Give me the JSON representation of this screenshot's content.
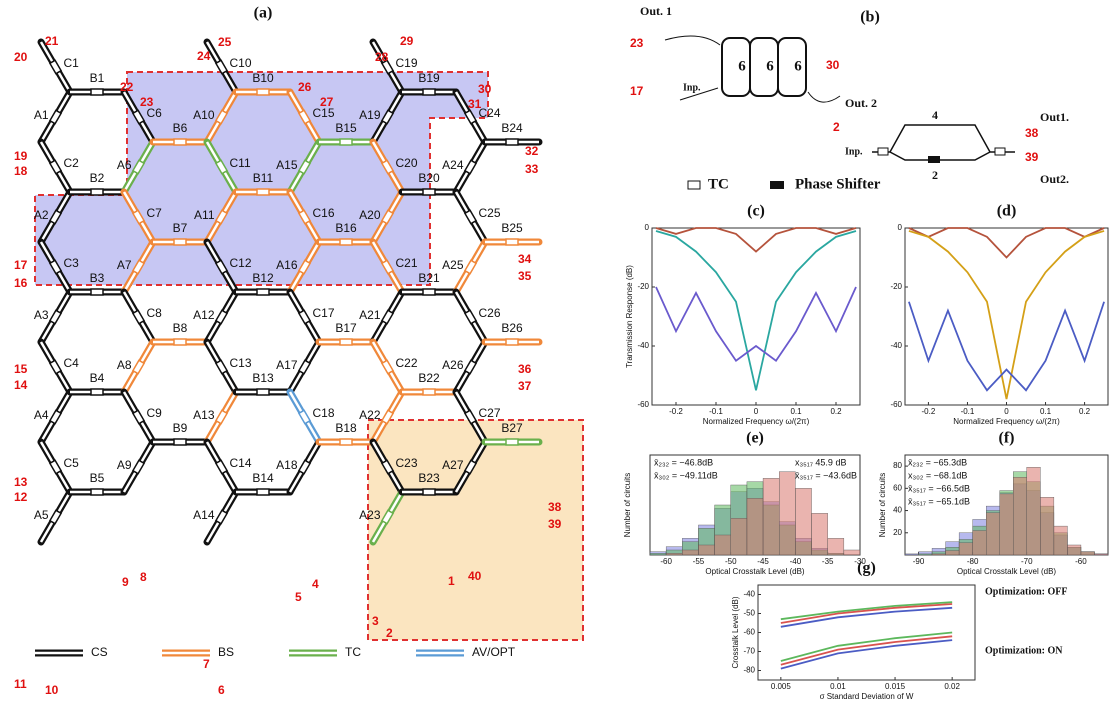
{
  "panel_a": {
    "label": "(a)",
    "columns": [
      {
        "A": [
          "A1",
          "A2",
          "A3",
          "A4",
          "A5"
        ],
        "B": [
          "B1",
          "B2",
          "B3",
          "B4",
          "B5"
        ],
        "C": [
          "C1",
          "C2",
          "C3",
          "C4",
          "C5"
        ]
      },
      {
        "A": [
          "A6",
          "A7",
          "A8",
          "A9"
        ],
        "B": [
          "B6",
          "B7",
          "B8",
          "B9"
        ],
        "C": [
          "C6",
          "C7",
          "C8",
          "C9"
        ]
      },
      {
        "A": [
          "A10",
          "A11",
          "A12",
          "A13",
          "A14"
        ],
        "B": [
          "B10",
          "B11",
          "B12",
          "B13",
          "B14"
        ],
        "C": [
          "C10",
          "C11",
          "C12",
          "C13",
          "C14"
        ]
      },
      {
        "A": [
          "A15",
          "A16",
          "A17",
          "A18"
        ],
        "B": [
          "B15",
          "B16",
          "B17",
          "B18"
        ],
        "C": [
          "C15",
          "C16",
          "C17",
          "C18"
        ]
      },
      {
        "A": [
          "A19",
          "A20",
          "A21",
          "A22",
          "A23"
        ],
        "B": [
          "B19",
          "B20",
          "B21",
          "B22",
          "B23"
        ],
        "C": [
          "C19",
          "C20",
          "C21",
          "C22",
          "C23"
        ]
      },
      {
        "A": [
          "A24",
          "A25",
          "A26",
          "A27"
        ],
        "B": [
          "B24",
          "B25",
          "B26",
          "B27"
        ],
        "C": [
          "C24",
          "C25",
          "C26",
          "C27"
        ]
      }
    ],
    "ports": [
      1,
      2,
      3,
      4,
      5,
      6,
      7,
      8,
      9,
      10,
      11,
      12,
      13,
      14,
      15,
      16,
      17,
      18,
      19,
      20,
      21,
      22,
      23,
      24,
      25,
      26,
      27,
      28,
      29,
      30,
      31,
      32,
      33,
      34,
      35,
      36,
      37,
      38,
      39,
      40
    ],
    "legend": [
      {
        "label": "CS",
        "color": "#111111"
      },
      {
        "label": "BS",
        "color": "#f0883a",
        "members": [
          "B6",
          "C7",
          "B7",
          "A7",
          "B8",
          "A8",
          "A10",
          "B10",
          "C15",
          "A11",
          "B11",
          "C16",
          "B16",
          "A16",
          "C20",
          "A20",
          "C21",
          "A13",
          "B17",
          "C22",
          "A22",
          "B22",
          "B18",
          "B25",
          "B26",
          "A25"
        ]
      },
      {
        "label": "TC",
        "color": "#6ab04c",
        "members": [
          "A6",
          "C11",
          "A15",
          "B15",
          "B27",
          "A23"
        ]
      },
      {
        "label": "AV/OPT",
        "color": "#5b9bd5",
        "members": [
          "C18"
        ]
      }
    ]
  },
  "panel_b": {
    "label": "(b)",
    "out1": "Out. 1",
    "port_23": 23,
    "port_17": 17,
    "inp": "Inp.",
    "stages": [
      6,
      6,
      6
    ],
    "port_30": 30,
    "out2": "Out. 2",
    "port_2": 2,
    "inp2": "Inp.",
    "upper": 4,
    "lower": 2,
    "out1b": "Out1.",
    "port_38": 38,
    "port_39": 39,
    "out2b": "Out2.",
    "legend": [
      "TC",
      "Phase Shifter"
    ]
  },
  "panel_c": {
    "label": "(c)",
    "type": "line",
    "y_label": "Transmission Response (dB)",
    "x_label": "Normalized Frequency ω/(2π)",
    "x": [
      -0.25,
      -0.2,
      -0.15,
      -0.1,
      -0.05,
      0,
      0.05,
      0.1,
      0.15,
      0.2,
      0.25
    ],
    "series": [
      {
        "color": "#b5533c",
        "values": [
          0,
          -2,
          0,
          0,
          -2,
          -8,
          -2,
          0,
          0,
          -2,
          0
        ]
      },
      {
        "color": "#2aa7a0",
        "values": [
          -1,
          -3,
          -8,
          -15,
          -25,
          -55,
          -25,
          -15,
          -8,
          -3,
          -1
        ]
      },
      {
        "color": "#6a5acd",
        "values": [
          -20,
          -35,
          -22,
          -35,
          -45,
          -40,
          -45,
          -35,
          -22,
          -35,
          -20
        ]
      }
    ],
    "xlim": [
      -0.26,
      0.26
    ],
    "ylim": [
      -60,
      0
    ],
    "xticks": [
      -0.2,
      -0.1,
      0,
      0.1,
      0.2
    ],
    "yticks": [
      -60,
      -40,
      -20,
      0
    ]
  },
  "panel_d": {
    "label": "(d)",
    "type": "line",
    "x_label": "Normalized Frequency ω/(2π)",
    "x": [
      -0.25,
      -0.2,
      -0.15,
      -0.1,
      -0.05,
      0,
      0.05,
      0.1,
      0.15,
      0.2,
      0.25
    ],
    "series": [
      {
        "color": "#b5533c",
        "values": [
          0,
          -3,
          0,
          0,
          -3,
          -10,
          -3,
          0,
          0,
          -3,
          0
        ]
      },
      {
        "color": "#d4a017",
        "values": [
          -1,
          -3,
          -8,
          -15,
          -25,
          -58,
          -25,
          -15,
          -8,
          -3,
          -1
        ]
      },
      {
        "color": "#4b5cc4",
        "values": [
          -25,
          -45,
          -28,
          -45,
          -55,
          -48,
          -55,
          -45,
          -28,
          -45,
          -25
        ]
      }
    ],
    "xlim": [
      -0.26,
      0.26
    ],
    "ylim": [
      -60,
      0
    ],
    "xticks": [
      -0.2,
      -0.1,
      0,
      0.1,
      0.2
    ],
    "yticks": [
      -60,
      -40,
      -20,
      0
    ]
  },
  "panel_e": {
    "label": "(e)",
    "type": "histogram",
    "y_label": "Number of circuits",
    "x_label": "Optical Crosstalk Level (dB)",
    "bins": [
      -62.5,
      -60,
      -57.5,
      -55,
      -52.5,
      -50,
      -47.5,
      -45,
      -42.5,
      -40,
      -37.5,
      -35,
      -32.5,
      -30
    ],
    "series": [
      {
        "color": "#7b7fe0",
        "values": [
          2,
          5,
          10,
          18,
          28,
          38,
          40,
          32,
          20,
          10,
          4,
          1,
          0
        ]
      },
      {
        "color": "#5cb85c",
        "values": [
          1,
          3,
          8,
          16,
          30,
          42,
          44,
          30,
          18,
          8,
          3,
          1,
          0
        ]
      },
      {
        "color": "#d9776e",
        "values": [
          0,
          1,
          3,
          6,
          12,
          22,
          34,
          46,
          50,
          40,
          25,
          10,
          3
        ]
      }
    ],
    "xlim": [
      -62.5,
      -30
    ],
    "ylim": [
      0,
      60
    ],
    "xticks": [
      -60,
      -55,
      -50,
      -45,
      -40,
      -35,
      -30
    ],
    "annotations": [
      "x̄₂₃₂ = −46.8dB",
      "x̄₃₀₂ = −49.11dB",
      "x₃₅₁₇ 45.9 dB",
      "x̄₃₅₁₇ = −43.6dB"
    ]
  },
  "panel_f": {
    "label": "(f)",
    "type": "histogram",
    "y_label": "Number of circuits",
    "x_label": "Optical Crosstalk Level (dB)",
    "bins": [
      -92.5,
      -90,
      -87.5,
      -85,
      -82.5,
      -80,
      -77.5,
      -75,
      -72.5,
      -70,
      -67.5,
      -65,
      -62.5,
      -60,
      -57.5,
      -55
    ],
    "series": [
      {
        "color": "#7b7fe0",
        "values": [
          1,
          3,
          6,
          12,
          20,
          32,
          44,
          56,
          64,
          58,
          38,
          18,
          7,
          3,
          1
        ]
      },
      {
        "color": "#5cb85c",
        "values": [
          0,
          1,
          3,
          7,
          14,
          26,
          40,
          58,
          75,
          66,
          44,
          20,
          7,
          3,
          0
        ]
      },
      {
        "color": "#d9776e",
        "values": [
          0,
          0,
          1,
          4,
          11,
          22,
          38,
          55,
          70,
          79,
          52,
          26,
          9,
          3,
          1
        ]
      }
    ],
    "xlim": [
      -92.5,
      -55
    ],
    "ylim": [
      0,
      90
    ],
    "xticks": [
      -90,
      -80,
      -70,
      -60
    ],
    "yticks": [
      20,
      40,
      60,
      80
    ],
    "annotations": [
      "x̄₂₃₂ = −65.3dB",
      "x₃₀₂ = −68.1dB",
      "x̄₃₅₁₇ = −66.5dB",
      "x̄₃₅₁₇ = −65.1dB"
    ]
  },
  "panel_g": {
    "label": "(g)",
    "type": "line",
    "y_label": "Crosstalk Level (dB)",
    "x_label": "σ Standard Deviation of W",
    "x": [
      0.005,
      0.01,
      0.015,
      0.02
    ],
    "series": [
      {
        "color": "#d9534f",
        "values": [
          -55,
          -50,
          -47,
          -45
        ]
      },
      {
        "color": "#5cb85c",
        "values": [
          -53,
          -49,
          -46,
          -44
        ]
      },
      {
        "color": "#4b5cc4",
        "values": [
          -57,
          -52,
          -49,
          -47
        ]
      },
      {
        "color": "#d9534f",
        "values": [
          -77,
          -69,
          -65,
          -62
        ]
      },
      {
        "color": "#5cb85c",
        "values": [
          -75,
          -67,
          -63,
          -60
        ]
      },
      {
        "color": "#4b5cc4",
        "values": [
          -79,
          -71,
          -67,
          -64
        ]
      }
    ],
    "xlim": [
      0.003,
      0.022
    ],
    "ylim": [
      -85,
      -35
    ],
    "xticks": [
      0.005,
      0.01,
      0.015,
      0.02
    ],
    "yticks": [
      -80,
      -70,
      -60,
      -50,
      -40
    ],
    "annotations": [
      "Optimization: OFF",
      "Optimization: ON"
    ]
  }
}
